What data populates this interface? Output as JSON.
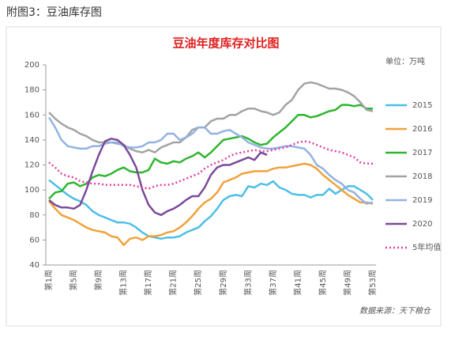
{
  "chart_data": {
    "type": "line",
    "page_title": "附图3：豆油库存图",
    "title": "豆油年度库存对比图",
    "unit": "单位：万吨",
    "source": "数据来源：天下粮仓",
    "categories": [
      "第1周",
      null,
      null,
      null,
      "第5周",
      null,
      null,
      null,
      "第9周",
      null,
      null,
      null,
      "第13周",
      null,
      null,
      null,
      "第17周",
      null,
      null,
      null,
      "第21周",
      null,
      null,
      null,
      "第25周",
      null,
      null,
      null,
      "第29周",
      null,
      null,
      null,
      "第33周",
      null,
      null,
      null,
      "第37周",
      null,
      null,
      null,
      "第41周",
      null,
      null,
      null,
      "第45周",
      null,
      null,
      null,
      "第49周",
      null,
      null,
      null,
      "第53周"
    ],
    "ylim": [
      40,
      200
    ],
    "yticks": [
      40,
      60,
      80,
      100,
      120,
      140,
      160,
      180,
      200
    ],
    "grid": false,
    "legend": "right",
    "series": [
      {
        "name": "2015",
        "color": "#4dbfe6",
        "dash": false,
        "values": [
          108,
          104,
          100,
          96,
          93,
          91,
          88,
          83,
          80,
          78,
          76,
          74,
          74,
          73,
          70,
          66,
          63,
          62,
          61,
          62,
          62,
          63,
          66,
          68,
          70,
          75,
          79,
          85,
          92,
          95,
          96,
          95,
          103,
          102,
          105,
          104,
          107,
          102,
          100,
          97,
          96,
          96,
          94,
          96,
          96,
          101,
          97,
          100,
          103,
          103,
          100,
          97,
          92
        ]
      },
      {
        "name": "2016",
        "color": "#f0a23a",
        "dash": false,
        "values": [
          91,
          85,
          80,
          78,
          76,
          73,
          70,
          68,
          67,
          66,
          63,
          62,
          56,
          61,
          62,
          60,
          63,
          63,
          64,
          66,
          67,
          70,
          74,
          79,
          85,
          90,
          93,
          98,
          106,
          108,
          110,
          113,
          114,
          115,
          115,
          115,
          117,
          118,
          118,
          119,
          120,
          121,
          120,
          117,
          112,
          108,
          104,
          100,
          96,
          93,
          90,
          90,
          89
        ]
      },
      {
        "name": "2017",
        "color": "#2fb52f",
        "dash": false,
        "values": [
          93,
          98,
          99,
          105,
          106,
          103,
          105,
          110,
          112,
          111,
          113,
          116,
          118,
          115,
          114,
          114,
          116,
          125,
          122,
          121,
          123,
          122,
          125,
          127,
          130,
          126,
          130,
          135,
          140,
          141,
          142,
          143,
          141,
          138,
          136,
          137,
          142,
          146,
          150,
          155,
          160,
          160,
          158,
          159,
          161,
          163,
          164,
          168,
          168,
          167,
          168,
          165,
          165
        ]
      },
      {
        "name": "2018",
        "color": "#a3a3a3",
        "dash": false,
        "values": [
          162,
          157,
          153,
          150,
          148,
          145,
          143,
          140,
          138,
          138,
          138,
          137,
          136,
          133,
          131,
          130,
          132,
          130,
          134,
          136,
          138,
          138,
          142,
          148,
          150,
          150,
          155,
          157,
          157,
          160,
          160,
          163,
          165,
          165,
          163,
          162,
          160,
          162,
          168,
          172,
          180,
          185,
          186,
          185,
          183,
          181,
          181,
          180,
          178,
          175,
          170,
          164,
          163
        ]
      },
      {
        "name": "2019",
        "color": "#92b3e2",
        "dash": false,
        "values": [
          158,
          150,
          140,
          135,
          134,
          133,
          133,
          135,
          135,
          137,
          138,
          138,
          135,
          134,
          134,
          135,
          138,
          138,
          140,
          145,
          145,
          140,
          142,
          145,
          150,
          150,
          145,
          145,
          147,
          148,
          145,
          142,
          138,
          136,
          134,
          133,
          133,
          134,
          135,
          135,
          134,
          133,
          128,
          120,
          117,
          112,
          108,
          105,
          100,
          98,
          93,
          89,
          90
        ]
      },
      {
        "name": "2020",
        "color": "#7b4a9b",
        "dash": false,
        "values": [
          92,
          88,
          86,
          86,
          85,
          88,
          100,
          115,
          128,
          139,
          141,
          140,
          136,
          128,
          118,
          100,
          88,
          82,
          80,
          83,
          85,
          88,
          92,
          95,
          95,
          102,
          112,
          118,
          120,
          120,
          122,
          124,
          126,
          124,
          130,
          128,
          null,
          null,
          null,
          null,
          null,
          null,
          null,
          null,
          null,
          null,
          null,
          null,
          null,
          null,
          null,
          null,
          null
        ]
      },
      {
        "name": "5年均值",
        "color": "#e03fa3",
        "dash": true,
        "values": [
          122,
          118,
          113,
          111,
          110,
          107,
          106,
          105,
          105,
          104,
          104,
          104,
          104,
          104,
          103,
          102,
          101,
          103,
          104,
          104,
          105,
          107,
          109,
          111,
          113,
          117,
          120,
          122,
          124,
          127,
          129,
          130,
          131,
          132,
          131,
          131,
          132,
          133,
          134,
          136,
          138,
          139,
          138,
          136,
          134,
          132,
          131,
          130,
          128,
          126,
          122,
          121,
          121
        ]
      }
    ]
  }
}
